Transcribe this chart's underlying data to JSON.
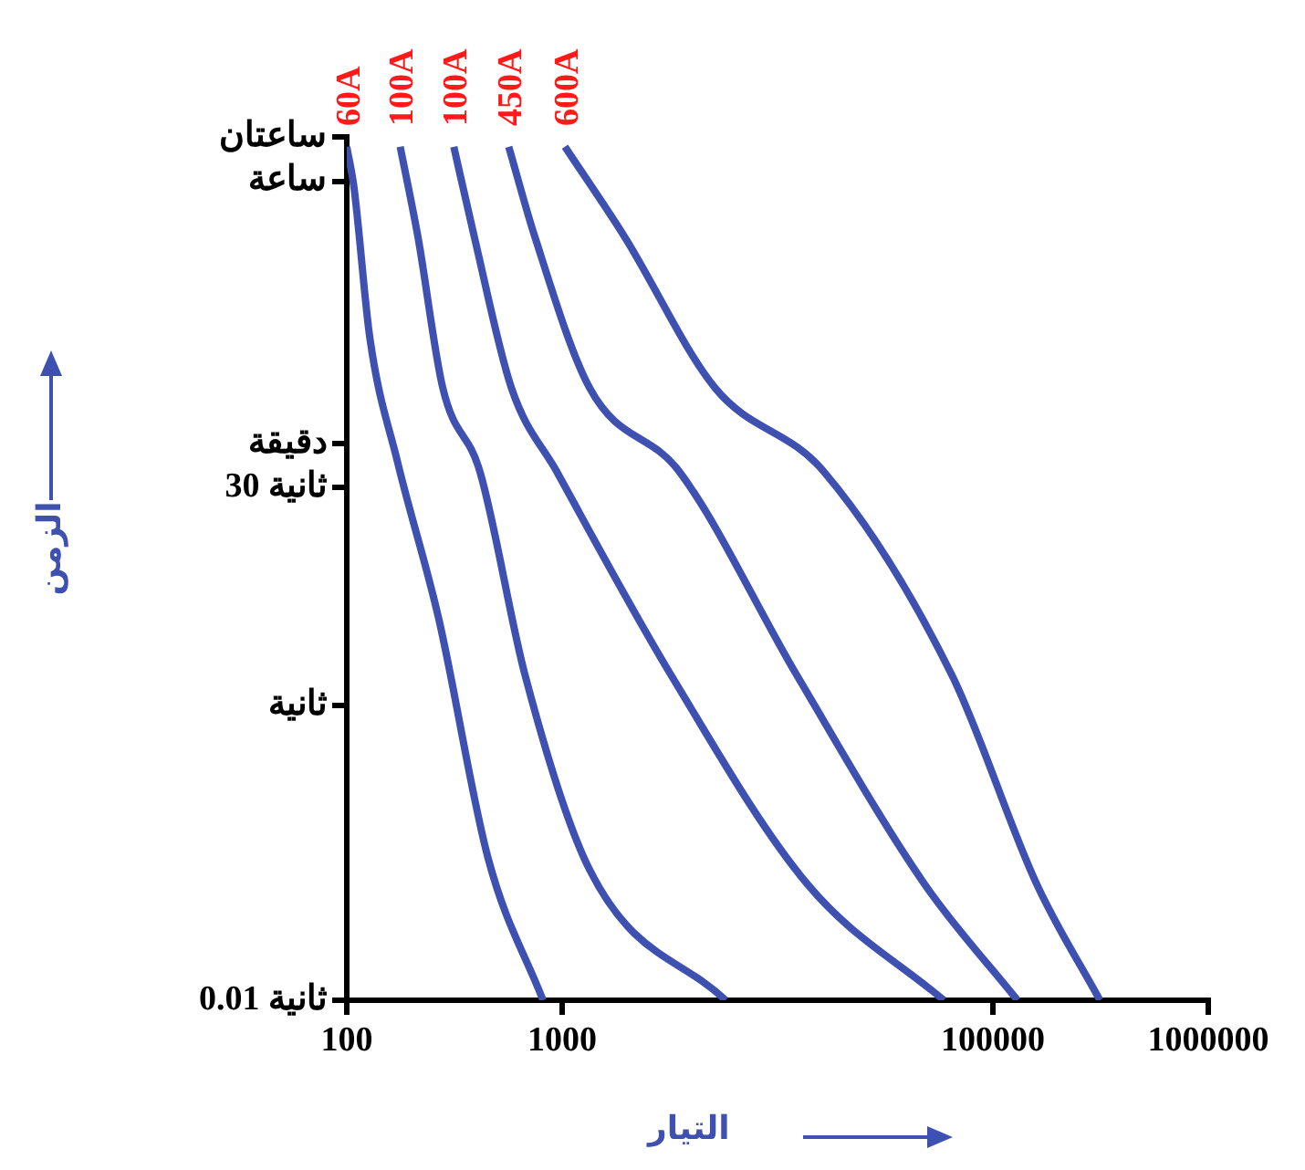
{
  "chart_data": {
    "type": "line",
    "xlabel": "التيار",
    "ylabel": "الزمن",
    "log": "xy",
    "xlim": [
      100,
      1000000
    ],
    "xticks": [
      100,
      1000,
      100000,
      1000000
    ],
    "ylim": [
      0.01,
      7200
    ],
    "yticks": [
      {
        "value": 0.01,
        "label": "0.01 ثانية"
      },
      {
        "value": 1,
        "label": "ثانية"
      },
      {
        "value": 30,
        "label": "30 ثانية"
      },
      {
        "value": 60,
        "label": "دقيقة"
      },
      {
        "value": 3600,
        "label": "ساعة"
      },
      {
        "value": 7200,
        "label": "ساعتان"
      }
    ],
    "legend": false,
    "marker": "none",
    "line_style": "solid",
    "series": [
      {
        "name": "60A",
        "color": "#3f51b0",
        "x": [
          100,
          108,
          128,
          172,
          267,
          453,
          815
        ],
        "values": [
          6170,
          3270,
          311,
          45,
          3.9,
          0.092,
          0.01
        ]
      },
      {
        "name": "100A",
        "color": "#3f51b0",
        "x": [
          177,
          214,
          279,
          415,
          673,
          1340,
          5740
        ],
        "values": [
          6170,
          1510,
          143,
          38.6,
          1.6,
          0.077,
          0.01
        ]
      },
      {
        "name": "100A",
        "color": "#3f51b0",
        "x": [
          314,
          391,
          581,
          944,
          3210,
          13800,
          59200
        ],
        "values": [
          6170,
          1510,
          143,
          38.6,
          1.6,
          0.061,
          0.01
        ]
      },
      {
        "name": "450A",
        "color": "#3f51b0",
        "x": [
          565,
          747,
          1340,
          3500,
          12300,
          48300,
          130000
        ],
        "values": [
          6170,
          1510,
          143,
          38.6,
          1.6,
          0.061,
          0.01
        ]
      },
      {
        "name": "600A",
        "color": "#3f51b0",
        "x": [
          1030,
          1950,
          5120,
          16400,
          64600,
          160000,
          314000
        ],
        "values": [
          6170,
          1510,
          143,
          38.6,
          1.6,
          0.061,
          0.01
        ]
      }
    ]
  }
}
